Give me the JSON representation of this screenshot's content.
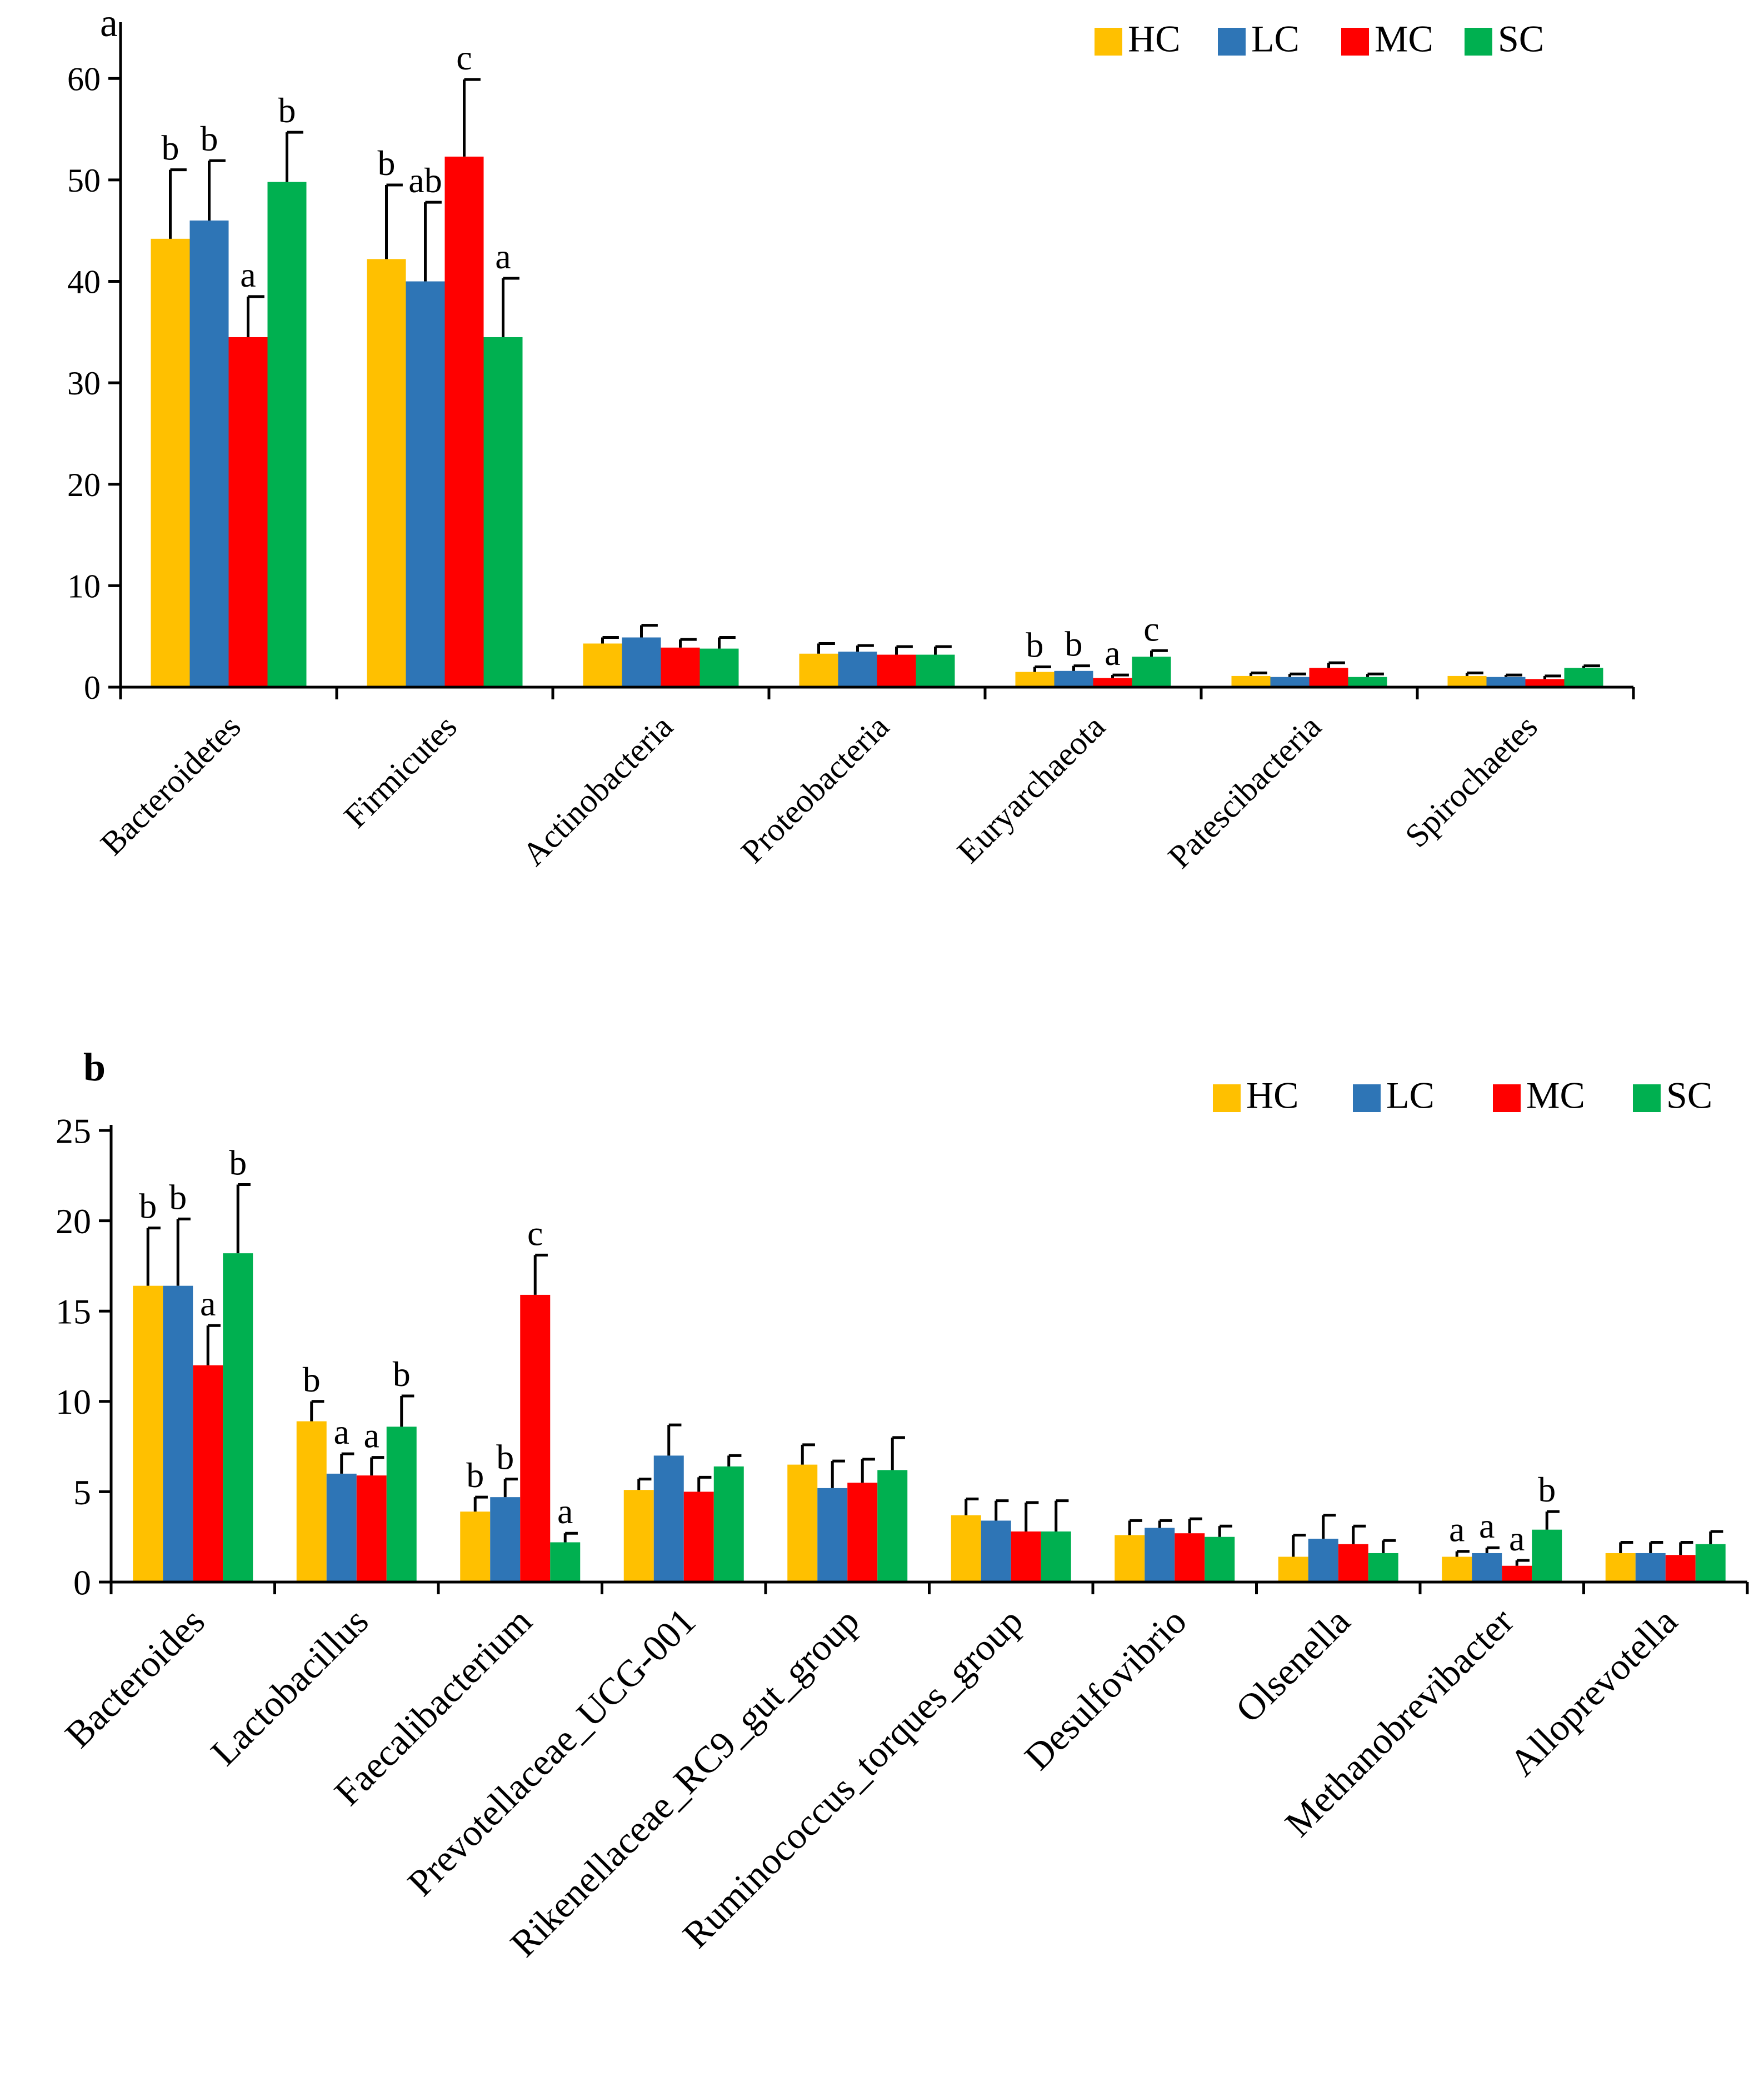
{
  "chart_data": [
    {
      "type": "bar",
      "panel_label": "a",
      "title": "",
      "xlabel": "",
      "ylabel": "",
      "ylim": [
        0,
        65
      ],
      "yticks": [
        0,
        10,
        20,
        30,
        40,
        50,
        60
      ],
      "grid": false,
      "legend_position": "top-right",
      "categories": [
        "Bacteroidetes",
        "Firmicutes",
        "Actinobacteria",
        "Proteobacteria",
        "Euryarchaeota",
        "Patescibacteria",
        "Spirochaetes"
      ],
      "series": [
        {
          "name": "HC",
          "color": "#FFC000",
          "values": [
            44.2,
            42.2,
            4.3,
            3.3,
            1.5,
            1.1,
            1.1
          ],
          "errors": [
            6.8,
            7.3,
            0.6,
            1.0,
            0.5,
            0.3,
            0.3
          ],
          "letters": [
            "b",
            "b",
            "",
            "",
            "b",
            "",
            ""
          ]
        },
        {
          "name": "LC",
          "color": "#2E75B6",
          "values": [
            46.0,
            40.0,
            4.9,
            3.5,
            1.6,
            1.0,
            1.0
          ],
          "errors": [
            5.9,
            7.8,
            1.2,
            0.6,
            0.5,
            0.3,
            0.2
          ],
          "letters": [
            "b",
            "ab",
            "",
            "",
            "b",
            "",
            ""
          ]
        },
        {
          "name": "MC",
          "color": "#FF0000",
          "values": [
            34.5,
            52.3,
            3.9,
            3.2,
            0.9,
            1.9,
            0.8
          ],
          "errors": [
            4.0,
            7.6,
            0.8,
            0.8,
            0.3,
            0.5,
            0.3
          ],
          "letters": [
            "a",
            "c",
            "",
            "",
            "a",
            "",
            ""
          ]
        },
        {
          "name": "SC",
          "color": "#00B050",
          "values": [
            49.8,
            34.5,
            3.8,
            3.2,
            3.0,
            1.0,
            1.9
          ],
          "errors": [
            4.9,
            5.8,
            1.1,
            0.8,
            0.6,
            0.3,
            0.2
          ],
          "letters": [
            "b",
            "a",
            "",
            "",
            "c",
            "",
            ""
          ]
        }
      ]
    },
    {
      "type": "bar",
      "panel_label": "b",
      "title": "",
      "xlabel": "",
      "ylabel": "",
      "ylim": [
        0,
        25
      ],
      "yticks": [
        0,
        5,
        10,
        15,
        20,
        25
      ],
      "grid": false,
      "legend_position": "top-right",
      "categories": [
        "Bacteroides",
        "Lactobacillus",
        "Faecalibacterium",
        "Prevotellaceae_UCG-001",
        "Rikenellaceae_RC9_gut_group",
        "Ruminococcus_torques_group",
        "Desulfovibrio",
        "Olsenella",
        "Methanobrevibacter",
        "Alloprevotella"
      ],
      "series": [
        {
          "name": "HC",
          "color": "#FFC000",
          "values": [
            16.4,
            8.9,
            3.9,
            5.1,
            6.5,
            3.7,
            2.6,
            1.4,
            1.4,
            1.6
          ],
          "errors": [
            3.2,
            1.1,
            0.8,
            0.6,
            1.1,
            0.9,
            0.8,
            1.2,
            0.3,
            0.6
          ],
          "letters": [
            "b",
            "b",
            "b",
            "",
            "",
            "",
            "",
            "",
            "a",
            ""
          ]
        },
        {
          "name": "LC",
          "color": "#2E75B6",
          "values": [
            16.4,
            6.0,
            4.7,
            7.0,
            5.2,
            3.4,
            3.0,
            2.4,
            1.6,
            1.6
          ],
          "errors": [
            3.7,
            1.1,
            1.0,
            1.7,
            1.5,
            1.1,
            0.4,
            1.3,
            0.3,
            0.6
          ],
          "letters": [
            "b",
            "a",
            "b",
            "",
            "",
            "",
            "",
            "",
            "a",
            ""
          ]
        },
        {
          "name": "MC",
          "color": "#FF0000",
          "values": [
            12.0,
            5.9,
            15.9,
            5.0,
            5.5,
            2.8,
            2.7,
            2.1,
            0.9,
            1.5
          ],
          "errors": [
            2.2,
            1.0,
            2.2,
            0.8,
            1.3,
            1.6,
            0.8,
            1.0,
            0.3,
            0.7
          ],
          "letters": [
            "a",
            "a",
            "c",
            "",
            "",
            "",
            "",
            "",
            "a",
            ""
          ]
        },
        {
          "name": "SC",
          "color": "#00B050",
          "values": [
            18.2,
            8.6,
            2.2,
            6.4,
            6.2,
            2.8,
            2.5,
            1.6,
            2.9,
            2.1
          ],
          "errors": [
            3.8,
            1.7,
            0.5,
            0.6,
            1.8,
            1.7,
            0.6,
            0.7,
            1.0,
            0.7
          ],
          "letters": [
            "b",
            "b",
            "a",
            "",
            "",
            "",
            "",
            "",
            "b",
            ""
          ]
        }
      ]
    }
  ]
}
